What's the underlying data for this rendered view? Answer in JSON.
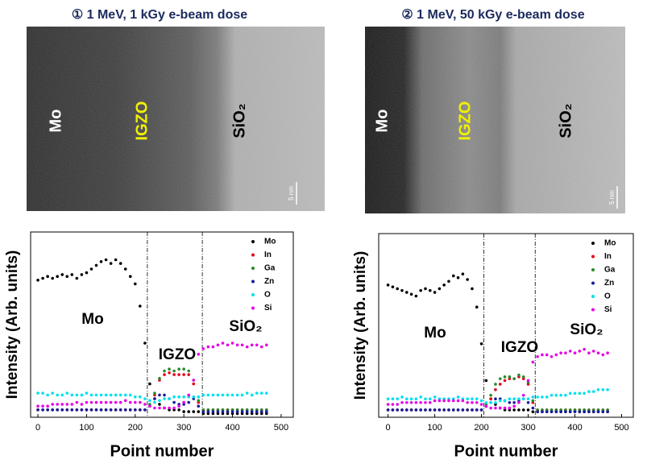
{
  "chart_data": [
    {
      "type": "scatter",
      "title": "① 1 MeV, 1 kGy e-beam dose",
      "image_labels": [
        "Mo",
        "IGZO",
        "SiO₂",
        "5 nm"
      ],
      "x_label": "Point number",
      "y_label": "Intensity (Arb. units)",
      "xlim": [
        -15,
        525
      ],
      "xticks": [
        0,
        100,
        200,
        300,
        400,
        500
      ],
      "ylim": [
        0,
        100
      ],
      "boundaries": [
        225,
        338
      ],
      "annotations": [
        "Mo",
        "IGZO",
        "SiO₂"
      ],
      "x": [
        0,
        10,
        20,
        30,
        40,
        50,
        60,
        70,
        80,
        90,
        100,
        110,
        120,
        130,
        140,
        150,
        160,
        170,
        180,
        190,
        200,
        210,
        220,
        230,
        240,
        250,
        260,
        270,
        280,
        290,
        300,
        310,
        320,
        330,
        340,
        350,
        360,
        370,
        380,
        390,
        400,
        410,
        420,
        430,
        440,
        450,
        460,
        470
      ],
      "series": [
        {
          "name": "Mo",
          "color": "#000000",
          "values": [
            74,
            75,
            76,
            75,
            76,
            77,
            76,
            77,
            75,
            77,
            78,
            80,
            82,
            84,
            85,
            83,
            85,
            83,
            80,
            76,
            72,
            60,
            40,
            18,
            10,
            7,
            5,
            4,
            4,
            4,
            3,
            3,
            3,
            3,
            2,
            2,
            2,
            2,
            2,
            2,
            2,
            2,
            2,
            2,
            2,
            2,
            2,
            2
          ]
        },
        {
          "name": "In",
          "color": "#e8001c",
          "values": [
            4,
            4,
            4,
            4,
            4,
            4,
            4,
            4,
            4,
            4,
            4,
            4,
            4,
            4,
            4,
            4,
            4,
            4,
            4,
            4,
            4,
            4,
            4,
            6,
            12,
            20,
            23,
            24,
            23,
            23,
            23,
            23,
            18,
            8,
            4,
            4,
            4,
            4,
            4,
            4,
            4,
            4,
            4,
            4,
            4,
            4,
            4,
            4
          ]
        },
        {
          "name": "Ga",
          "color": "#2a8a2a",
          "values": [
            4,
            4,
            4,
            4,
            4,
            4,
            4,
            4,
            4,
            4,
            4,
            4,
            4,
            4,
            4,
            4,
            4,
            4,
            4,
            4,
            4,
            4,
            4,
            7,
            13,
            21,
            25,
            26,
            25,
            26,
            26,
            25,
            20,
            9,
            4,
            4,
            4,
            4,
            4,
            4,
            4,
            4,
            4,
            4,
            4,
            4,
            4,
            4
          ]
        },
        {
          "name": "Zn",
          "color": "#1a1a9e",
          "values": [
            4,
            4,
            4,
            4,
            4,
            4,
            4,
            4,
            4,
            4,
            4,
            4,
            4,
            4,
            4,
            4,
            4,
            4,
            4,
            4,
            4,
            4,
            4,
            6,
            10,
            12,
            12,
            10,
            8,
            7,
            7,
            8,
            10,
            6,
            3,
            3,
            3,
            3,
            3,
            3,
            3,
            3,
            3,
            3,
            3,
            3,
            3,
            3
          ]
        },
        {
          "name": "O",
          "color": "#00e0ee",
          "values": [
            13,
            13,
            12,
            13,
            12,
            12,
            13,
            12,
            12,
            12,
            13,
            12,
            12,
            12,
            12,
            12,
            12,
            12,
            12,
            12,
            11,
            11,
            10,
            9,
            8,
            9,
            10,
            10,
            11,
            11,
            11,
            11,
            11,
            11,
            12,
            12,
            12,
            12,
            12,
            12,
            12,
            12,
            12,
            13,
            12,
            13,
            13,
            13
          ]
        },
        {
          "name": "Si",
          "color": "#e600e6",
          "values": [
            6,
            6,
            6,
            7,
            7,
            7,
            7,
            7,
            8,
            7,
            8,
            8,
            8,
            8,
            8,
            8,
            8,
            8,
            9,
            8,
            8,
            8,
            7,
            6,
            5,
            5,
            5,
            5,
            5,
            6,
            8,
            12,
            20,
            34,
            37,
            38,
            38,
            39,
            40,
            39,
            40,
            39,
            39,
            38,
            39,
            39,
            38,
            39
          ]
        }
      ]
    },
    {
      "type": "scatter",
      "title": "② 1 MeV, 50 kGy e-beam dose",
      "image_labels": [
        "Mo",
        "IGZO",
        "SiO₂",
        "5 nm"
      ],
      "x_label": "Point number",
      "y_label": "Intensity (Arb. units)",
      "xlim": [
        -20,
        525
      ],
      "xticks": [
        0,
        100,
        200,
        300,
        400,
        500
      ],
      "ylim": [
        0,
        100
      ],
      "boundaries": [
        205,
        315
      ],
      "annotations": [
        "Mo",
        "IGZO",
        "SiO₂"
      ],
      "x": [
        0,
        10,
        20,
        30,
        40,
        50,
        60,
        70,
        80,
        90,
        100,
        110,
        120,
        130,
        140,
        150,
        160,
        170,
        180,
        190,
        200,
        210,
        220,
        230,
        240,
        250,
        260,
        270,
        280,
        290,
        300,
        310,
        320,
        330,
        340,
        350,
        360,
        370,
        380,
        390,
        400,
        410,
        420,
        430,
        440,
        450,
        460,
        470
      ],
      "series": [
        {
          "name": "Mo",
          "color": "#000000",
          "values": [
            72,
            71,
            70,
            69,
            68,
            67,
            66,
            69,
            70,
            69,
            68,
            70,
            72,
            74,
            77,
            76,
            78,
            75,
            70,
            60,
            40,
            20,
            10,
            7,
            5,
            4,
            4,
            4,
            4,
            4,
            4,
            3,
            3,
            3,
            3,
            3,
            3,
            3,
            3,
            3,
            3,
            3,
            3,
            3,
            3,
            3,
            3,
            3
          ]
        },
        {
          "name": "In",
          "color": "#e8001c",
          "values": [
            4,
            4,
            4,
            4,
            4,
            4,
            4,
            4,
            4,
            4,
            4,
            4,
            4,
            4,
            4,
            4,
            4,
            4,
            4,
            4,
            4,
            6,
            10,
            15,
            18,
            20,
            21,
            21,
            22,
            21,
            18,
            8,
            4,
            4,
            4,
            4,
            4,
            4,
            4,
            4,
            4,
            4,
            4,
            4,
            4,
            4,
            4,
            4
          ]
        },
        {
          "name": "Ga",
          "color": "#2a8a2a",
          "values": [
            4,
            4,
            4,
            4,
            4,
            4,
            4,
            4,
            4,
            4,
            4,
            4,
            4,
            4,
            4,
            4,
            4,
            4,
            4,
            4,
            4,
            7,
            12,
            18,
            21,
            22,
            22,
            21,
            23,
            22,
            19,
            9,
            4,
            4,
            4,
            4,
            4,
            4,
            4,
            4,
            4,
            4,
            4,
            4,
            4,
            4,
            4,
            4
          ]
        },
        {
          "name": "Zn",
          "color": "#1a1a9e",
          "values": [
            4,
            4,
            4,
            4,
            4,
            4,
            4,
            4,
            4,
            4,
            4,
            4,
            4,
            4,
            4,
            4,
            4,
            4,
            4,
            4,
            4,
            6,
            8,
            10,
            10,
            9,
            8,
            8,
            9,
            10,
            8,
            5,
            3,
            3,
            3,
            3,
            3,
            3,
            3,
            3,
            3,
            3,
            3,
            3,
            3,
            3,
            3,
            3
          ]
        },
        {
          "name": "O",
          "color": "#00e0ee",
          "values": [
            10,
            10,
            10,
            11,
            10,
            10,
            10,
            11,
            10,
            10,
            11,
            10,
            10,
            10,
            10,
            11,
            10,
            10,
            10,
            10,
            9,
            8,
            8,
            8,
            9,
            9,
            10,
            10,
            10,
            10,
            10,
            11,
            11,
            11,
            11,
            12,
            12,
            12,
            12,
            13,
            13,
            13,
            13,
            14,
            14,
            15,
            15,
            15
          ]
        },
        {
          "name": "Si",
          "color": "#e600e6",
          "values": [
            7,
            7,
            7,
            8,
            8,
            8,
            8,
            8,
            8,
            8,
            9,
            9,
            9,
            9,
            9,
            9,
            9,
            8,
            8,
            8,
            7,
            6,
            5,
            5,
            5,
            5,
            5,
            6,
            8,
            12,
            20,
            30,
            33,
            34,
            34,
            33,
            34,
            35,
            35,
            36,
            35,
            36,
            37,
            35,
            36,
            35,
            34,
            35
          ]
        }
      ]
    }
  ]
}
